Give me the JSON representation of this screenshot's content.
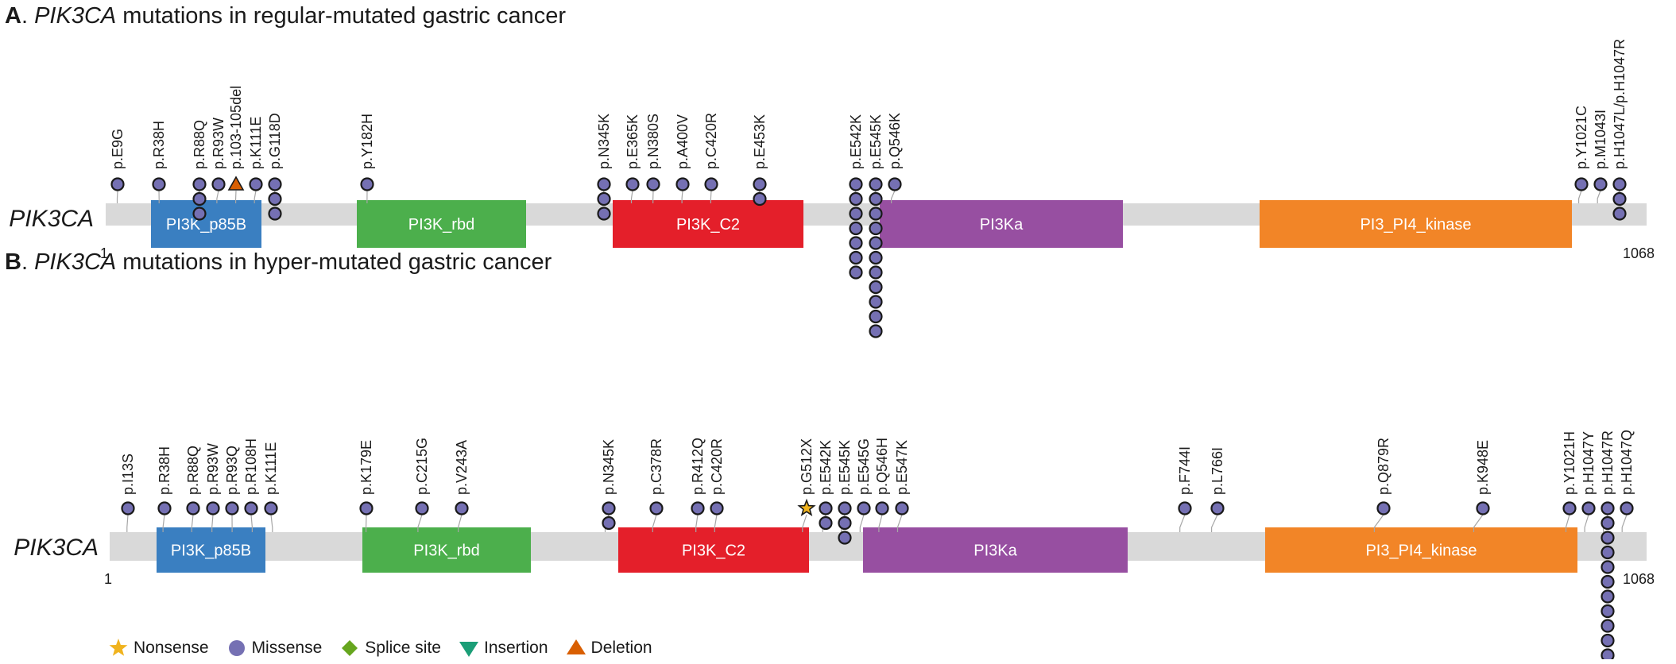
{
  "panels": [
    {
      "label": "A",
      "title_gene": "PIK3CA",
      "title_rest": " mutations in regular-mutated gastric cancer",
      "gene": "PIK3CA",
      "start_label": "1",
      "end_label": "1068",
      "length": 1068,
      "domains": [
        {
          "name": "PI3K_p85B",
          "start": 32,
          "end": 108,
          "color": "#3a7fc1"
        },
        {
          "name": "PI3K_rbd",
          "start": 178,
          "end": 295,
          "color": "#4caf4c"
        },
        {
          "name": "PI3K_C2",
          "start": 353,
          "end": 485,
          "color": "#e41f2a"
        },
        {
          "name": "PI3Ka",
          "start": 530,
          "end": 704,
          "color": "#974fa1"
        },
        {
          "name": "PI3_PI4_kinase",
          "start": 797,
          "end": 1013,
          "color": "#f28527"
        }
      ],
      "mutations": [
        {
          "label": "p.E9G",
          "pos": 9,
          "count": 1,
          "type": "Missense"
        },
        {
          "label": "p.R38H",
          "pos": 38,
          "count": 1,
          "type": "Missense"
        },
        {
          "label": "p.R88Q",
          "pos": 65,
          "count": 3,
          "type": "Missense"
        },
        {
          "label": "p.R93W",
          "pos": 78,
          "count": 1,
          "type": "Missense"
        },
        {
          "label": "p.103-105del",
          "pos": 91,
          "count": 1,
          "type": "Deletion"
        },
        {
          "label": "p.K111E",
          "pos": 104,
          "count": 1,
          "type": "Missense"
        },
        {
          "label": "p.G118D",
          "pos": 117,
          "count": 3,
          "type": "Missense"
        },
        {
          "label": "p.Y182H",
          "pos": 182,
          "count": 1,
          "type": "Missense"
        },
        {
          "label": "p.N345K",
          "pos": 345,
          "count": 3,
          "type": "Missense"
        },
        {
          "label": "p.E365K",
          "pos": 365,
          "count": 1,
          "type": "Missense"
        },
        {
          "label": "p.N380S",
          "pos": 380,
          "count": 1,
          "type": "Missense"
        },
        {
          "label": "p.A400V",
          "pos": 400,
          "count": 1,
          "type": "Missense"
        },
        {
          "label": "p.C420R",
          "pos": 420,
          "count": 1,
          "type": "Missense"
        },
        {
          "label": "p.E453K",
          "pos": 453,
          "count": 2,
          "type": "Missense"
        },
        {
          "label": "p.E542K",
          "pos": 518,
          "count": 7,
          "type": "Missense"
        },
        {
          "label": "p.E545K",
          "pos": 532,
          "count": 11,
          "type": "Missense"
        },
        {
          "label": "p.Q546K",
          "pos": 545,
          "count": 1,
          "type": "Missense"
        },
        {
          "label": "p.Y1021C",
          "pos": 1021,
          "count": 1,
          "type": "Missense"
        },
        {
          "label": "p.M1043I",
          "pos": 1034,
          "count": 1,
          "type": "Missense"
        },
        {
          "label": "p.H1047L/p.H1047R",
          "pos": 1047,
          "count": 3,
          "type": "Missense"
        }
      ]
    },
    {
      "label": "B",
      "title_gene": "PIK3CA",
      "title_rest": " mutations in hyper-mutated gastric cancer",
      "gene": "PIK3CA",
      "start_label": "1",
      "end_label": "1068",
      "length": 1068,
      "domains": [
        {
          "name": "PI3K_p85B",
          "start": 32,
          "end": 108,
          "color": "#3a7fc1"
        },
        {
          "name": "PI3K_rbd",
          "start": 178,
          "end": 295,
          "color": "#4caf4c"
        },
        {
          "name": "PI3K_C2",
          "start": 353,
          "end": 485,
          "color": "#e41f2a"
        },
        {
          "name": "PI3Ka",
          "start": 523,
          "end": 706,
          "color": "#974fa1"
        },
        {
          "name": "PI3_PI4_kinase",
          "start": 797,
          "end": 1015,
          "color": "#f28527"
        }
      ],
      "mutations": [
        {
          "label": "p.I13S",
          "pos": 13,
          "count": 1,
          "type": "Missense"
        },
        {
          "label": "p.R38H",
          "pos": 38,
          "count": 1,
          "type": "Missense"
        },
        {
          "label": "p.R88Q",
          "pos": 58,
          "count": 1,
          "type": "Missense"
        },
        {
          "label": "p.R93W",
          "pos": 72,
          "count": 1,
          "type": "Missense"
        },
        {
          "label": "p.R93Q",
          "pos": 86,
          "count": 1,
          "type": "Missense"
        },
        {
          "label": "p.R108H",
          "pos": 100,
          "count": 1,
          "type": "Missense"
        },
        {
          "label": "p.K111E",
          "pos": 114,
          "count": 1,
          "type": "Missense"
        },
        {
          "label": "p.K179E",
          "pos": 179,
          "count": 1,
          "type": "Missense"
        },
        {
          "label": "p.C215G",
          "pos": 215,
          "count": 1,
          "type": "Missense"
        },
        {
          "label": "p.V243A",
          "pos": 243,
          "count": 1,
          "type": "Missense"
        },
        {
          "label": "p.N345K",
          "pos": 345,
          "count": 2,
          "type": "Missense"
        },
        {
          "label": "p.C378R",
          "pos": 378,
          "count": 1,
          "type": "Missense"
        },
        {
          "label": "p.R412Q",
          "pos": 408,
          "count": 1,
          "type": "Missense"
        },
        {
          "label": "p.C420R",
          "pos": 421,
          "count": 1,
          "type": "Missense"
        },
        {
          "label": "p.G512X",
          "pos": 482,
          "count": 1,
          "type": "Nonsense"
        },
        {
          "label": "p.E542K",
          "pos": 496,
          "count": 2,
          "type": "Missense"
        },
        {
          "label": "p.E545K",
          "pos": 509,
          "count": 3,
          "type": "Missense"
        },
        {
          "label": "p.E545G",
          "pos": 522,
          "count": 1,
          "type": "Missense"
        },
        {
          "label": "p.Q546H",
          "pos": 535,
          "count": 1,
          "type": "Missense"
        },
        {
          "label": "p.E547K",
          "pos": 548,
          "count": 1,
          "type": "Missense"
        },
        {
          "label": "p.F744I",
          "pos": 744,
          "count": 1,
          "type": "Missense"
        },
        {
          "label": "p.L766I",
          "pos": 766,
          "count": 1,
          "type": "Missense"
        },
        {
          "label": "p.Q879R",
          "pos": 879,
          "count": 1,
          "type": "Missense"
        },
        {
          "label": "p.K948E",
          "pos": 948,
          "count": 1,
          "type": "Missense"
        },
        {
          "label": "p.Y1021H",
          "pos": 1012,
          "count": 1,
          "type": "Missense"
        },
        {
          "label": "p.H1047Y",
          "pos": 1025,
          "count": 1,
          "type": "Missense"
        },
        {
          "label": "p.H1047R",
          "pos": 1038,
          "count": 12,
          "type": "Missense"
        },
        {
          "label": "p.H1047Q",
          "pos": 1051,
          "count": 1,
          "type": "Missense"
        }
      ]
    }
  ],
  "legend": [
    {
      "label": "Nonsense",
      "type": "Nonsense",
      "color": "#f0b31e",
      "icon": "star-icon"
    },
    {
      "label": "Missense",
      "type": "Missense",
      "color": "#7570b3",
      "icon": "circle-icon"
    },
    {
      "label": "Splice site",
      "type": "Splice site",
      "color": "#66a61e",
      "icon": "diamond-icon"
    },
    {
      "label": "Insertion",
      "type": "Insertion",
      "color": "#1b9e77",
      "icon": "triangle-down-icon"
    },
    {
      "label": "Deletion",
      "type": "Deletion",
      "color": "#d95f02",
      "icon": "triangle-up-icon"
    }
  ],
  "colors": {
    "backbone": "#d9d9d9",
    "stem": "#a6a6a6",
    "marker_stroke": "#1a1a1a"
  }
}
